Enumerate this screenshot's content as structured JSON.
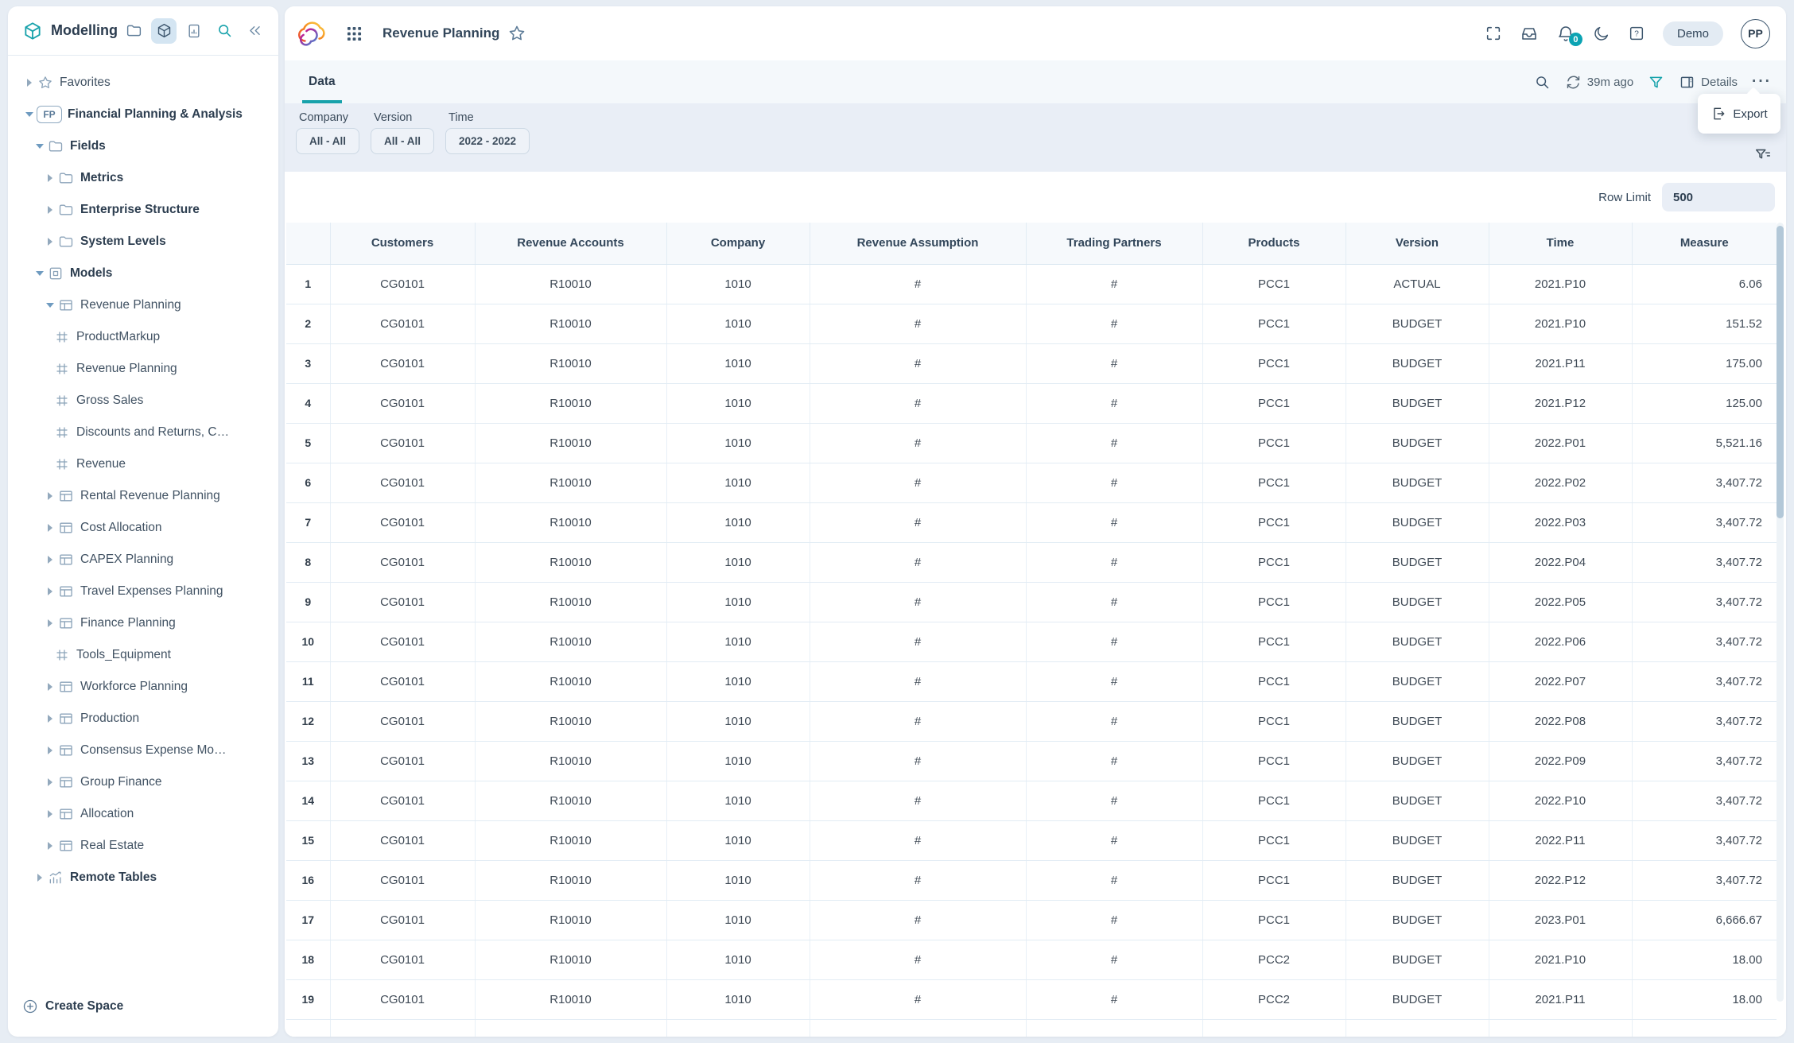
{
  "sidebar": {
    "title": "Modelling",
    "header_icons": [
      "folder-icon",
      "cube-icon",
      "report-icon",
      "search-icon",
      "collapse-sidebar-icon"
    ],
    "tree": [
      {
        "label": "Favorites",
        "level": 0,
        "caret": "right",
        "icon": "star",
        "bold": false
      },
      {
        "label": "Financial Planning & Analysis",
        "level": 0,
        "caret": "down",
        "icon": "fp",
        "bold": true
      },
      {
        "label": "Fields",
        "level": 1,
        "caret": "down",
        "icon": "folder",
        "bold": true
      },
      {
        "label": "Metrics",
        "level": 2,
        "caret": "right",
        "icon": "folder",
        "bold": true
      },
      {
        "label": "Enterprise Structure",
        "level": 2,
        "caret": "right",
        "icon": "folder",
        "bold": true
      },
      {
        "label": "System Levels",
        "level": 2,
        "caret": "right",
        "icon": "folder",
        "bold": true
      },
      {
        "label": "Models",
        "level": 1,
        "caret": "down",
        "icon": "models",
        "bold": true
      },
      {
        "label": "Revenue Planning",
        "level": 2,
        "caret": "down",
        "icon": "table",
        "bold": false
      },
      {
        "label": "ProductMarkup",
        "level": 3,
        "caret": "none",
        "icon": "leaf",
        "bold": false
      },
      {
        "label": "Revenue Planning",
        "level": 3,
        "caret": "none",
        "icon": "leaf",
        "bold": false
      },
      {
        "label": "Gross Sales",
        "level": 3,
        "caret": "none",
        "icon": "leaf",
        "bold": false
      },
      {
        "label": "Discounts and Returns, C…",
        "level": 3,
        "caret": "none",
        "icon": "leaf",
        "bold": false
      },
      {
        "label": "Revenue",
        "level": 3,
        "caret": "none",
        "icon": "leaf",
        "bold": false
      },
      {
        "label": "Rental Revenue Planning",
        "level": 2,
        "caret": "right",
        "icon": "table",
        "bold": false
      },
      {
        "label": "Cost Allocation",
        "level": 2,
        "caret": "right",
        "icon": "table",
        "bold": false
      },
      {
        "label": "CAPEX Planning",
        "level": 2,
        "caret": "right",
        "icon": "table",
        "bold": false
      },
      {
        "label": "Travel Expenses Planning",
        "level": 2,
        "caret": "right",
        "icon": "table",
        "bold": false
      },
      {
        "label": "Finance Planning",
        "level": 2,
        "caret": "right",
        "icon": "table",
        "bold": false
      },
      {
        "label": "Tools_Equipment",
        "level": 3,
        "caret": "none",
        "icon": "leaf",
        "bold": false
      },
      {
        "label": "Workforce Planning",
        "level": 2,
        "caret": "right",
        "icon": "table",
        "bold": false
      },
      {
        "label": "Production",
        "level": 2,
        "caret": "right",
        "icon": "table",
        "bold": false
      },
      {
        "label": "Consensus Expense Mo…",
        "level": 2,
        "caret": "right",
        "icon": "table",
        "bold": false
      },
      {
        "label": "Group Finance",
        "level": 2,
        "caret": "right",
        "icon": "table",
        "bold": false
      },
      {
        "label": "Allocation",
        "level": 2,
        "caret": "right",
        "icon": "table",
        "bold": false
      },
      {
        "label": "Real Estate",
        "level": 2,
        "caret": "right",
        "icon": "table",
        "bold": false
      },
      {
        "label": "Remote Tables",
        "level": 1,
        "caret": "right",
        "icon": "remote",
        "bold": true
      }
    ],
    "create_space_label": "Create Space"
  },
  "app_header": {
    "title": "Revenue Planning",
    "demo_badge": "Demo",
    "avatar_initials": "PP",
    "notification_count": "0"
  },
  "tab_bar": {
    "active_tab": "Data",
    "last_refresh": "39m ago",
    "details_label": "Details"
  },
  "context_menu": {
    "export_label": "Export"
  },
  "filter_bar": {
    "filters": [
      {
        "label": "Company",
        "value": "All - All"
      },
      {
        "label": "Version",
        "value": "All - All"
      },
      {
        "label": "Time",
        "value": "2022 - 2022"
      }
    ]
  },
  "table": {
    "row_limit_label": "Row Limit",
    "row_limit_value": "500",
    "columns": [
      "",
      "Customers",
      "Revenue Accounts",
      "Company",
      "Revenue Assumption",
      "Trading Partners",
      "Products",
      "Version",
      "Time",
      "Measure"
    ],
    "rows": [
      [
        "1",
        "CG0101",
        "R10010",
        "1010",
        "#",
        "#",
        "PCC1",
        "ACTUAL",
        "2021.P10",
        "6.06"
      ],
      [
        "2",
        "CG0101",
        "R10010",
        "1010",
        "#",
        "#",
        "PCC1",
        "BUDGET",
        "2021.P10",
        "151.52"
      ],
      [
        "3",
        "CG0101",
        "R10010",
        "1010",
        "#",
        "#",
        "PCC1",
        "BUDGET",
        "2021.P11",
        "175.00"
      ],
      [
        "4",
        "CG0101",
        "R10010",
        "1010",
        "#",
        "#",
        "PCC1",
        "BUDGET",
        "2021.P12",
        "125.00"
      ],
      [
        "5",
        "CG0101",
        "R10010",
        "1010",
        "#",
        "#",
        "PCC1",
        "BUDGET",
        "2022.P01",
        "5,521.16"
      ],
      [
        "6",
        "CG0101",
        "R10010",
        "1010",
        "#",
        "#",
        "PCC1",
        "BUDGET",
        "2022.P02",
        "3,407.72"
      ],
      [
        "7",
        "CG0101",
        "R10010",
        "1010",
        "#",
        "#",
        "PCC1",
        "BUDGET",
        "2022.P03",
        "3,407.72"
      ],
      [
        "8",
        "CG0101",
        "R10010",
        "1010",
        "#",
        "#",
        "PCC1",
        "BUDGET",
        "2022.P04",
        "3,407.72"
      ],
      [
        "9",
        "CG0101",
        "R10010",
        "1010",
        "#",
        "#",
        "PCC1",
        "BUDGET",
        "2022.P05",
        "3,407.72"
      ],
      [
        "10",
        "CG0101",
        "R10010",
        "1010",
        "#",
        "#",
        "PCC1",
        "BUDGET",
        "2022.P06",
        "3,407.72"
      ],
      [
        "11",
        "CG0101",
        "R10010",
        "1010",
        "#",
        "#",
        "PCC1",
        "BUDGET",
        "2022.P07",
        "3,407.72"
      ],
      [
        "12",
        "CG0101",
        "R10010",
        "1010",
        "#",
        "#",
        "PCC1",
        "BUDGET",
        "2022.P08",
        "3,407.72"
      ],
      [
        "13",
        "CG0101",
        "R10010",
        "1010",
        "#",
        "#",
        "PCC1",
        "BUDGET",
        "2022.P09",
        "3,407.72"
      ],
      [
        "14",
        "CG0101",
        "R10010",
        "1010",
        "#",
        "#",
        "PCC1",
        "BUDGET",
        "2022.P10",
        "3,407.72"
      ],
      [
        "15",
        "CG0101",
        "R10010",
        "1010",
        "#",
        "#",
        "PCC1",
        "BUDGET",
        "2022.P11",
        "3,407.72"
      ],
      [
        "16",
        "CG0101",
        "R10010",
        "1010",
        "#",
        "#",
        "PCC1",
        "BUDGET",
        "2022.P12",
        "3,407.72"
      ],
      [
        "17",
        "CG0101",
        "R10010",
        "1010",
        "#",
        "#",
        "PCC1",
        "BUDGET",
        "2023.P01",
        "6,666.67"
      ],
      [
        "18",
        "CG0101",
        "R10010",
        "1010",
        "#",
        "#",
        "PCC2",
        "BUDGET",
        "2021.P10",
        "18.00"
      ],
      [
        "19",
        "CG0101",
        "R10010",
        "1010",
        "#",
        "#",
        "PCC2",
        "BUDGET",
        "2021.P11",
        "18.00"
      ],
      [
        "",
        "",
        "",
        "",
        "",
        "",
        "",
        "",
        "",
        ""
      ]
    ]
  },
  "colors": {
    "accent_teal": "#17a2ab",
    "notification_badge": "#0ba3b3",
    "filter_band": "#e9eef6"
  }
}
